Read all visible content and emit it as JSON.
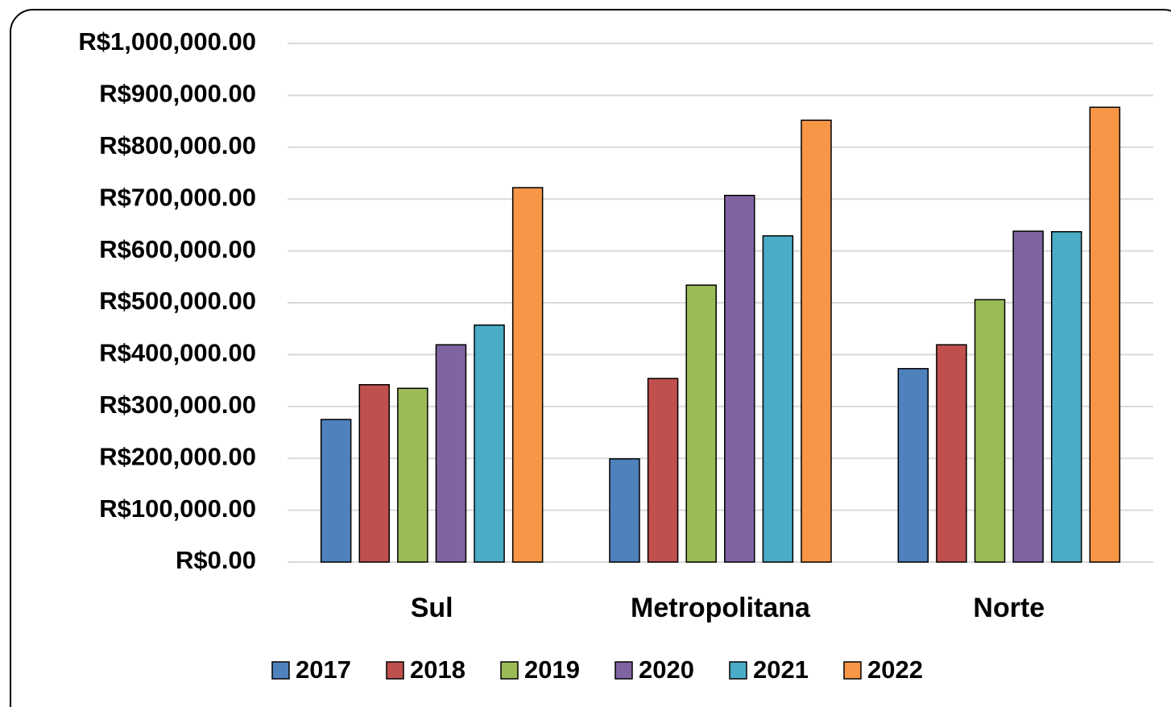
{
  "chart_data": {
    "type": "bar",
    "categories": [
      "Sul",
      "Metropolitana",
      "Norte"
    ],
    "series": [
      {
        "name": "2017",
        "color": "#4f81bd",
        "values": [
          275000,
          199000,
          373000
        ]
      },
      {
        "name": "2018",
        "color": "#c0504d",
        "values": [
          342000,
          354000,
          419000
        ]
      },
      {
        "name": "2019",
        "color": "#9bbb59",
        "values": [
          335000,
          534000,
          506000
        ]
      },
      {
        "name": "2020",
        "color": "#8064a2",
        "values": [
          419000,
          707000,
          638000
        ]
      },
      {
        "name": "2021",
        "color": "#4bacc6",
        "values": [
          457000,
          629000,
          637000
        ]
      },
      {
        "name": "2022",
        "color": "#f79646",
        "values": [
          722000,
          852000,
          877000
        ]
      }
    ],
    "ylim": [
      0,
      1000000
    ],
    "yticks": [
      {
        "value": 0,
        "label": "R$0.00"
      },
      {
        "value": 100000,
        "label": "R$100,000.00"
      },
      {
        "value": 200000,
        "label": "R$200,000.00"
      },
      {
        "value": 300000,
        "label": "R$300,000.00"
      },
      {
        "value": 400000,
        "label": "R$400,000.00"
      },
      {
        "value": 500000,
        "label": "R$500,000.00"
      },
      {
        "value": 600000,
        "label": "R$600,000.00"
      },
      {
        "value": 700000,
        "label": "R$700,000.00"
      },
      {
        "value": 800000,
        "label": "R$800,000.00"
      },
      {
        "value": 900000,
        "label": "R$900,000.00"
      },
      {
        "value": 1000000,
        "label": "R$1,000,000.00"
      }
    ],
    "grid": true,
    "legend": "bottom"
  }
}
